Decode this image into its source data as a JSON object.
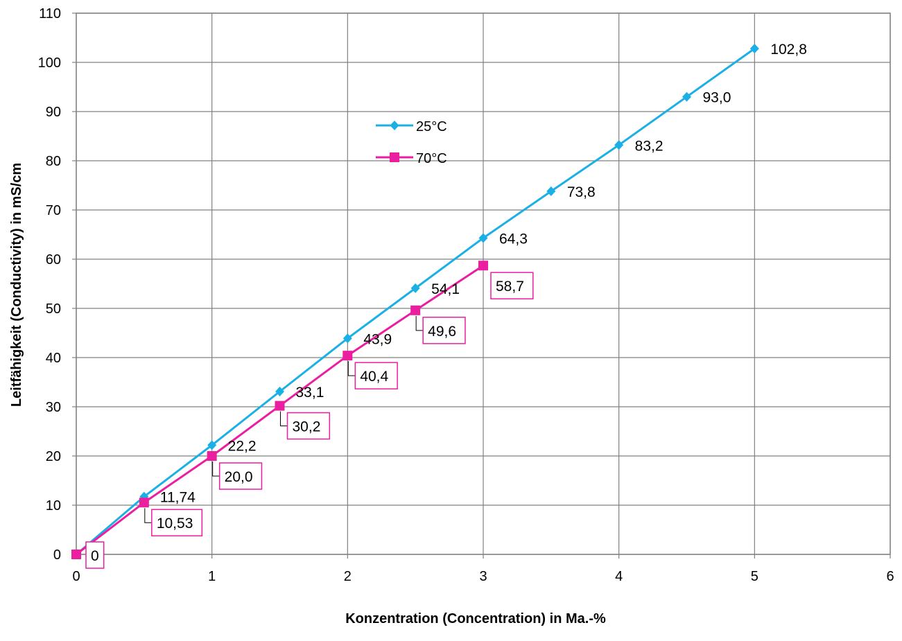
{
  "chart_data": {
    "type": "line",
    "title": "",
    "xlabel": "Konzentration (Concentration) in Ma.-%",
    "ylabel": "Leitfähigkeit (Conductivity) in mS/cm",
    "xlim": [
      0,
      6
    ],
    "ylim": [
      0,
      110
    ],
    "x_ticks": [
      "0",
      "1",
      "2",
      "3",
      "4",
      "5",
      "6"
    ],
    "y_ticks": [
      "0",
      "10",
      "20",
      "30",
      "40",
      "50",
      "60",
      "70",
      "80",
      "90",
      "100",
      "110"
    ],
    "grid": true,
    "legend_position": "center-left",
    "series": [
      {
        "name": "25°C",
        "color": "#1ab0e6",
        "marker": "diamond",
        "x": [
          0,
          0.5,
          1,
          1.5,
          2,
          2.5,
          3,
          3.5,
          4,
          4.5,
          5
        ],
        "values": [
          0,
          11.74,
          22.2,
          33.1,
          43.9,
          54.1,
          64.3,
          73.8,
          83.2,
          93.0,
          102.8
        ],
        "labels": [
          "",
          "11,74",
          "22,2",
          "33,1",
          "43,9",
          "54,1",
          "64,3",
          "73,8",
          "83,2",
          "93,0",
          "102,8"
        ]
      },
      {
        "name": "70°C",
        "color": "#ec1ea0",
        "marker": "square",
        "x": [
          0,
          0.5,
          1,
          1.5,
          2,
          2.5,
          3
        ],
        "values": [
          0,
          10.53,
          20.0,
          30.2,
          40.4,
          49.6,
          58.7
        ],
        "labels": [
          "0",
          "10,53",
          "20,0",
          "30,2",
          "40,4",
          "49,6",
          "58,7"
        ]
      }
    ]
  }
}
